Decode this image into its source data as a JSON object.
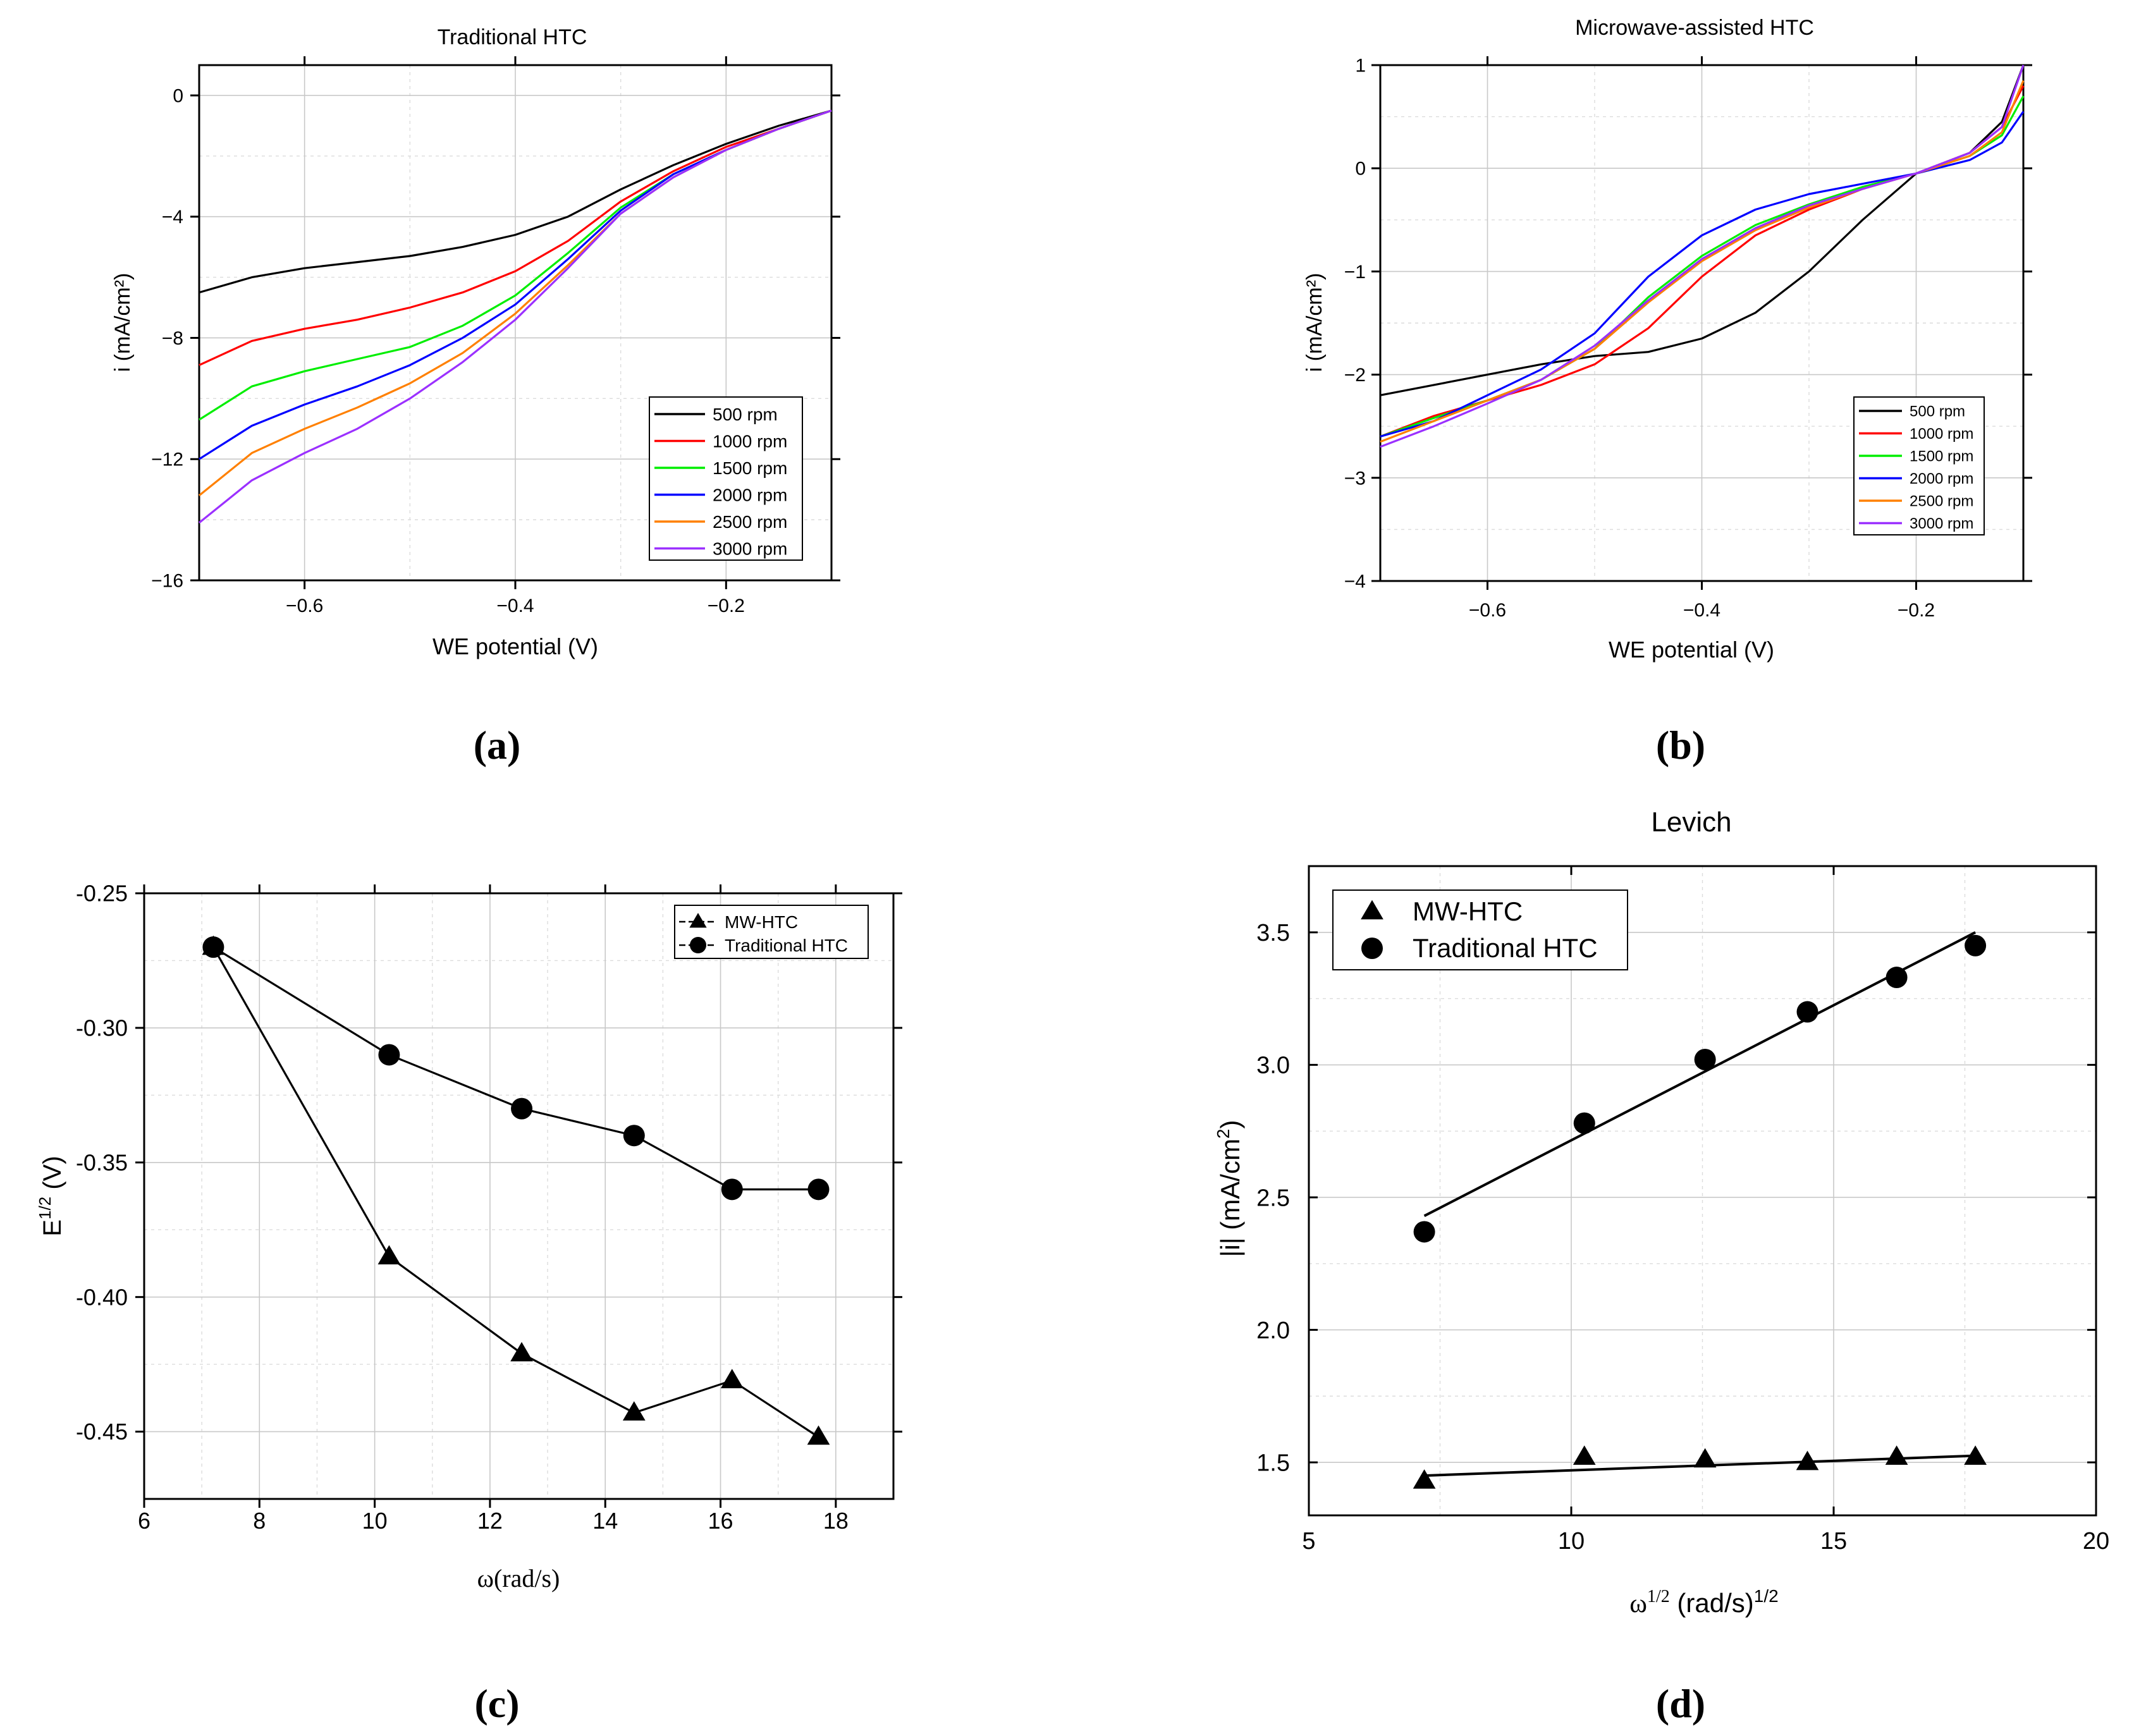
{
  "chart_data": [
    {
      "id": "a",
      "type": "line",
      "panel_label": "(a)",
      "title": "Traditional HTC",
      "xlabel": "WE potential (V)",
      "ylabel": "i (mA/cm²)",
      "xlim": [
        -0.7,
        -0.1
      ],
      "ylim": [
        -16,
        1
      ],
      "xticks": [
        -0.6,
        -0.4,
        -0.2
      ],
      "xtick_labels": [
        "−0.6",
        "−0.4",
        "−0.2"
      ],
      "yticks": [
        0,
        -4,
        -8,
        -12,
        -16
      ],
      "ytick_labels": [
        "0",
        "−4",
        "−8",
        "−12",
        "−16"
      ],
      "grid": true,
      "legend_position": "bottom-right",
      "series": [
        {
          "name": "500 rpm",
          "color": "#000000",
          "x": [
            -0.7,
            -0.65,
            -0.6,
            -0.55,
            -0.5,
            -0.45,
            -0.4,
            -0.35,
            -0.3,
            -0.25,
            -0.2,
            -0.15,
            -0.1
          ],
          "y": [
            -6.5,
            -6.0,
            -5.7,
            -5.5,
            -5.3,
            -5.0,
            -4.6,
            -4.0,
            -3.1,
            -2.3,
            -1.6,
            -1.0,
            -0.5
          ]
        },
        {
          "name": "1000 rpm",
          "color": "#ff0000",
          "x": [
            -0.7,
            -0.65,
            -0.6,
            -0.55,
            -0.5,
            -0.45,
            -0.4,
            -0.35,
            -0.3,
            -0.25,
            -0.2,
            -0.15,
            -0.1
          ],
          "y": [
            -8.9,
            -8.1,
            -7.7,
            -7.4,
            -7.0,
            -6.5,
            -5.8,
            -4.8,
            -3.5,
            -2.5,
            -1.7,
            -1.1,
            -0.5
          ]
        },
        {
          "name": "1500 rpm",
          "color": "#00ee00",
          "x": [
            -0.7,
            -0.65,
            -0.6,
            -0.55,
            -0.5,
            -0.45,
            -0.4,
            -0.35,
            -0.3,
            -0.25,
            -0.2,
            -0.15,
            -0.1
          ],
          "y": [
            -10.7,
            -9.6,
            -9.1,
            -8.7,
            -8.3,
            -7.6,
            -6.6,
            -5.2,
            -3.7,
            -2.6,
            -1.8,
            -1.1,
            -0.5
          ]
        },
        {
          "name": "2000 rpm",
          "color": "#0000ff",
          "x": [
            -0.7,
            -0.65,
            -0.6,
            -0.55,
            -0.5,
            -0.45,
            -0.4,
            -0.35,
            -0.3,
            -0.25,
            -0.2,
            -0.15,
            -0.1
          ],
          "y": [
            -12.0,
            -10.9,
            -10.2,
            -9.6,
            -8.9,
            -8.0,
            -6.9,
            -5.4,
            -3.8,
            -2.6,
            -1.8,
            -1.1,
            -0.5
          ]
        },
        {
          "name": "2500 rpm",
          "color": "#ff8000",
          "x": [
            -0.7,
            -0.65,
            -0.6,
            -0.55,
            -0.5,
            -0.45,
            -0.4,
            -0.35,
            -0.3,
            -0.25,
            -0.2,
            -0.15,
            -0.1
          ],
          "y": [
            -13.2,
            -11.8,
            -11.0,
            -10.3,
            -9.5,
            -8.5,
            -7.2,
            -5.6,
            -3.9,
            -2.7,
            -1.8,
            -1.1,
            -0.5
          ]
        },
        {
          "name": "3000 rpm",
          "color": "#9b30ff",
          "x": [
            -0.7,
            -0.65,
            -0.6,
            -0.55,
            -0.5,
            -0.45,
            -0.4,
            -0.35,
            -0.3,
            -0.25,
            -0.2,
            -0.15,
            -0.1
          ],
          "y": [
            -14.1,
            -12.7,
            -11.8,
            -11.0,
            -10.0,
            -8.8,
            -7.4,
            -5.7,
            -3.9,
            -2.7,
            -1.8,
            -1.1,
            -0.5
          ]
        }
      ]
    },
    {
      "id": "b",
      "type": "line",
      "panel_label": "(b)",
      "title": "Microwave-assisted HTC",
      "xlabel": "WE potential (V)",
      "ylabel": "i (mA/cm²)",
      "xlim": [
        -0.7,
        -0.1
      ],
      "ylim": [
        -4,
        1
      ],
      "xticks": [
        -0.6,
        -0.4,
        -0.2
      ],
      "xtick_labels": [
        "−0.6",
        "−0.4",
        "−0.2"
      ],
      "yticks": [
        1,
        0,
        -1,
        -2,
        -3,
        -4
      ],
      "ytick_labels": [
        "1",
        "0",
        "−1",
        "−2",
        "−3",
        "−4"
      ],
      "grid": true,
      "legend_position": "bottom-right",
      "series": [
        {
          "name": "500 rpm",
          "color": "#000000",
          "x": [
            -0.7,
            -0.65,
            -0.6,
            -0.55,
            -0.5,
            -0.45,
            -0.4,
            -0.35,
            -0.3,
            -0.25,
            -0.2,
            -0.15,
            -0.12,
            -0.1
          ],
          "y": [
            -2.2,
            -2.1,
            -2.0,
            -1.9,
            -1.82,
            -1.78,
            -1.65,
            -1.4,
            -1.0,
            -0.5,
            -0.05,
            0.15,
            0.45,
            1.0
          ]
        },
        {
          "name": "1000 rpm",
          "color": "#ff0000",
          "x": [
            -0.7,
            -0.65,
            -0.6,
            -0.55,
            -0.5,
            -0.45,
            -0.4,
            -0.35,
            -0.3,
            -0.25,
            -0.2,
            -0.15,
            -0.12,
            -0.1
          ],
          "y": [
            -2.6,
            -2.4,
            -2.25,
            -2.1,
            -1.9,
            -1.55,
            -1.05,
            -0.65,
            -0.4,
            -0.2,
            -0.05,
            0.15,
            0.4,
            0.8
          ]
        },
        {
          "name": "1500 rpm",
          "color": "#00ee00",
          "x": [
            -0.7,
            -0.65,
            -0.6,
            -0.55,
            -0.5,
            -0.45,
            -0.4,
            -0.35,
            -0.3,
            -0.25,
            -0.2,
            -0.15,
            -0.12,
            -0.1
          ],
          "y": [
            -2.6,
            -2.42,
            -2.25,
            -2.05,
            -1.75,
            -1.25,
            -0.85,
            -0.55,
            -0.35,
            -0.18,
            -0.05,
            0.12,
            0.32,
            0.7
          ]
        },
        {
          "name": "2000 rpm",
          "color": "#0000ff",
          "x": [
            -0.7,
            -0.65,
            -0.6,
            -0.55,
            -0.5,
            -0.45,
            -0.4,
            -0.35,
            -0.3,
            -0.25,
            -0.2,
            -0.15,
            -0.12,
            -0.1
          ],
          "y": [
            -2.6,
            -2.45,
            -2.2,
            -1.95,
            -1.6,
            -1.05,
            -0.65,
            -0.4,
            -0.25,
            -0.15,
            -0.05,
            0.08,
            0.25,
            0.55
          ]
        },
        {
          "name": "2500 rpm",
          "color": "#ff8000",
          "x": [
            -0.7,
            -0.65,
            -0.6,
            -0.55,
            -0.5,
            -0.45,
            -0.4,
            -0.35,
            -0.3,
            -0.25,
            -0.2,
            -0.15,
            -0.12,
            -0.1
          ],
          "y": [
            -2.65,
            -2.45,
            -2.25,
            -2.05,
            -1.75,
            -1.3,
            -0.9,
            -0.6,
            -0.38,
            -0.2,
            -0.05,
            0.12,
            0.35,
            0.85
          ]
        },
        {
          "name": "3000 rpm",
          "color": "#9b30ff",
          "x": [
            -0.7,
            -0.65,
            -0.6,
            -0.55,
            -0.5,
            -0.45,
            -0.4,
            -0.35,
            -0.3,
            -0.25,
            -0.2,
            -0.15,
            -0.12,
            -0.1
          ],
          "y": [
            -2.7,
            -2.5,
            -2.28,
            -2.05,
            -1.72,
            -1.28,
            -0.88,
            -0.58,
            -0.36,
            -0.2,
            -0.05,
            0.15,
            0.4,
            1.0
          ]
        }
      ]
    },
    {
      "id": "c",
      "type": "line",
      "panel_label": "(c)",
      "title": "",
      "xlabel": "ω(rad/s)",
      "ylabel_base": "E",
      "ylabel_sup": "1/2",
      "ylabel_unit": " (V)",
      "xlim": [
        6,
        19
      ],
      "ylim": [
        -0.475,
        -0.25
      ],
      "xticks": [
        6,
        8,
        10,
        12,
        14,
        16,
        18
      ],
      "xtick_labels": [
        "6",
        "8",
        "10",
        "12",
        "14",
        "16",
        "18"
      ],
      "yticks": [
        -0.25,
        -0.3,
        -0.35,
        -0.4,
        -0.45
      ],
      "ytick_labels": [
        "-0.25",
        "-0.30",
        "-0.35",
        "-0.40",
        "-0.45"
      ],
      "grid": true,
      "legend_position": "top-right",
      "series": [
        {
          "name": "MW-HTC",
          "marker": "triangle",
          "x": [
            7.2,
            10.25,
            12.55,
            14.5,
            16.2,
            17.7
          ],
          "y": [
            -0.27,
            -0.385,
            -0.421,
            -0.443,
            -0.431,
            -0.452
          ]
        },
        {
          "name": "Traditional HTC",
          "marker": "circle",
          "x": [
            7.2,
            10.25,
            12.55,
            14.5,
            16.2,
            17.7
          ],
          "y": [
            -0.27,
            -0.31,
            -0.33,
            -0.34,
            -0.36,
            -0.36
          ]
        }
      ]
    },
    {
      "id": "d",
      "type": "scatter",
      "panel_label": "(d)",
      "title": "Levich",
      "xlabel_base": "ω",
      "xlabel_sup": "1/2",
      "xlabel_mid": " (rad/s)",
      "xlabel_sup2": "1/2",
      "ylabel_base": "|i| (mA/cm",
      "ylabel_sup": "2",
      "ylabel_end": ")",
      "xlim": [
        5,
        20
      ],
      "ylim": [
        1.3,
        3.75
      ],
      "xticks": [
        5,
        10,
        15,
        20
      ],
      "xtick_labels": [
        "5",
        "10",
        "15",
        "20"
      ],
      "yticks": [
        1.5,
        2.0,
        2.5,
        3.0,
        3.5
      ],
      "ytick_labels": [
        "1.5",
        "2.0",
        "2.5",
        "3.0",
        "3.5"
      ],
      "grid": true,
      "legend_position": "top-left",
      "series": [
        {
          "name": "MW-HTC",
          "marker": "triangle",
          "x": [
            7.2,
            10.25,
            12.55,
            14.5,
            16.2,
            17.7
          ],
          "y": [
            1.43,
            1.52,
            1.51,
            1.5,
            1.52,
            1.52
          ],
          "fit": [
            [
              7.2,
              1.45
            ],
            [
              17.7,
              1.525
            ]
          ]
        },
        {
          "name": "Traditional HTC",
          "marker": "circle",
          "x": [
            7.2,
            10.25,
            12.55,
            14.5,
            16.2,
            17.7
          ],
          "y": [
            2.37,
            2.78,
            3.02,
            3.2,
            3.33,
            3.45
          ],
          "fit": [
            [
              7.2,
              2.43
            ],
            [
              17.7,
              3.5
            ]
          ]
        }
      ]
    }
  ]
}
